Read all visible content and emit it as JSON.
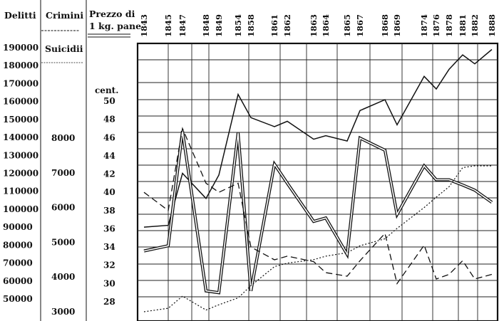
{
  "chart_data": {
    "type": "line",
    "headers": {
      "delitti": "Delitti",
      "crimini": "Crimini",
      "suicidii": "Suicidii",
      "prezzo": [
        "Prezzo di",
        "1 kg. pane"
      ],
      "prezzo_unit": "cent."
    },
    "x": [
      "1843",
      "1845",
      "1847",
      "1848",
      "1849",
      "1854",
      "1858",
      "1861",
      "1862",
      "1863",
      "1864",
      "1865",
      "1867",
      "1868",
      "1869",
      "1874",
      "1876",
      "1878",
      "1881",
      "1882",
      "1888"
    ],
    "axes": {
      "delitti": {
        "ticks": [
          "190000",
          "180000",
          "170000",
          "160000",
          "150000",
          "140000",
          "130000",
          "120000",
          "110000",
          "100000",
          "90000",
          "80000",
          "70000",
          "60000",
          "50000"
        ],
        "ylim": [
          50000,
          190000
        ]
      },
      "crimini": {
        "ticks": [
          "8000",
          "7000",
          "6000",
          "5000",
          "4000",
          "3000"
        ],
        "ylim": [
          3000,
          8000
        ]
      },
      "prezzo": {
        "ticks": [
          "50",
          "48",
          "46",
          "44",
          "42",
          "40",
          "38",
          "36",
          "34",
          "32",
          "30",
          "28"
        ],
        "ylim": [
          28,
          50
        ]
      }
    },
    "grid": true,
    "series": [
      {
        "style": "thin solid line",
        "axis": "delitti",
        "x": [
          "1843",
          "1845",
          "1847",
          "1848",
          "1849",
          "1854",
          "1858",
          "1861",
          "1862",
          "1863",
          "1864",
          "1865",
          "1867",
          "1868",
          "1869",
          "1874",
          "1876",
          "1878",
          "1881",
          "1882",
          "1888"
        ],
        "values": [
          90000,
          91000,
          120000,
          106000,
          119000,
          164000,
          151000,
          146000,
          149000,
          139000,
          141000,
          138000,
          155000,
          161000,
          147000,
          174000,
          167000,
          178000,
          186000,
          181000,
          189000
        ]
      },
      {
        "style": "double line",
        "axis": "crimini",
        "x": [
          "1843",
          "1845",
          "1847",
          "1848",
          "1849",
          "1854",
          "1858",
          "1861",
          "1862",
          "1863",
          "1864",
          "1865",
          "1867",
          "1868",
          "1869",
          "1874",
          "1876",
          "1878",
          "1881",
          "1882",
          "1888"
        ],
        "values": [
          4750,
          4900,
          8200,
          3600,
          3550,
          8150,
          3600,
          7250,
          6700,
          5600,
          5700,
          4650,
          8000,
          7650,
          5800,
          7200,
          6800,
          6800,
          6650,
          6500,
          6150
        ]
      },
      {
        "style": "long-dashed line",
        "axis": "prezzo",
        "x": [
          "1843",
          "1845",
          "1847",
          "1848",
          "1849",
          "1854",
          "1858",
          "1861",
          "1862",
          "1863",
          "1864",
          "1865",
          "1867",
          "1868",
          "1869",
          "1874",
          "1876",
          "1878",
          "1881",
          "1882",
          "1888"
        ],
        "values": [
          40,
          38,
          47,
          41,
          40,
          41,
          34,
          32.6,
          33,
          32.4,
          31.2,
          30.8,
          32.5,
          35.5,
          30,
          34.2,
          30.5,
          31,
          32.5,
          30.5,
          31
        ]
      },
      {
        "style": "dotted line",
        "axis": "crimini",
        "x": [
          "1843",
          "1845",
          "1847",
          "1848",
          "1849",
          "1854",
          "1858",
          "1861",
          "1862",
          "1863",
          "1864",
          "1865",
          "1867",
          "1868",
          "1869",
          "1874",
          "1876",
          "1878",
          "1881",
          "1882",
          "1888"
        ],
        "values": [
          3000,
          3100,
          3450,
          3050,
          3200,
          3400,
          3750,
          4300,
          4400,
          4500,
          4600,
          4700,
          4900,
          5100,
          5400,
          6000,
          6300,
          6600,
          7150,
          7200,
          7200
        ]
      }
    ]
  }
}
